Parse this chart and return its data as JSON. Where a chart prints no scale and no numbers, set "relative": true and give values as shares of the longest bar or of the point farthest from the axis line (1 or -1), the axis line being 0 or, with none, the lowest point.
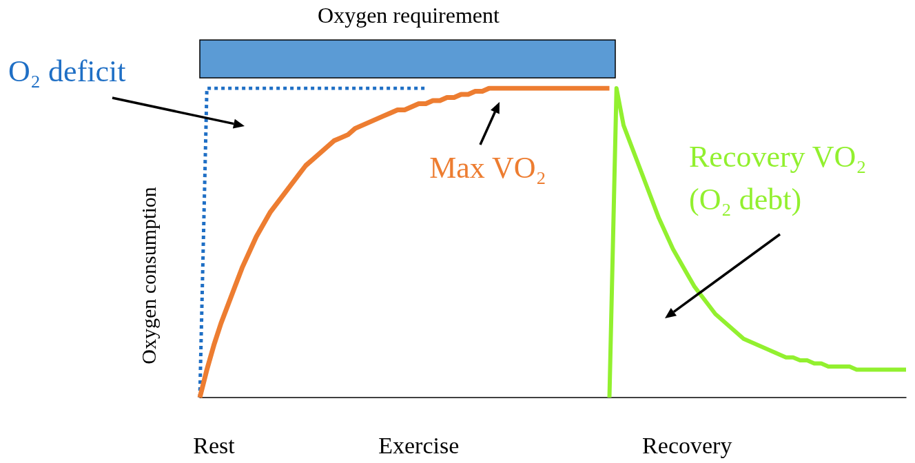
{
  "chart_data": {
    "type": "line",
    "relative": true,
    "ylabel": "Oxygen consumption",
    "marker": "none",
    "categories": [
      null,
      null,
      "Rest",
      null,
      null,
      null,
      null,
      null,
      null,
      null,
      null,
      null,
      null,
      null,
      null,
      null,
      null,
      null,
      null,
      null,
      null,
      null,
      null,
      null,
      null,
      null,
      null,
      null,
      null,
      null,
      null,
      "Exercise",
      null,
      null,
      null,
      null,
      null,
      null,
      null,
      null,
      null,
      null,
      null,
      null,
      null,
      null,
      null,
      null,
      null,
      null,
      null,
      null,
      null,
      null,
      null,
      null,
      null,
      null,
      null,
      null,
      null,
      null,
      null,
      null,
      null,
      null,
      null,
      null,
      null,
      "Recovery",
      null,
      null,
      null,
      null,
      null,
      null,
      null,
      null,
      null,
      null,
      null,
      null,
      null,
      null,
      null,
      null,
      null,
      null,
      null,
      null,
      null,
      null,
      null,
      null,
      null,
      null,
      null,
      null,
      null,
      null,
      null
    ],
    "series": [
      {
        "color": "#1f6fc5",
        "line_style": "dotted",
        "values": [
          0,
          1,
          1,
          1,
          1,
          1,
          1,
          1,
          1,
          1,
          1,
          1,
          1,
          1,
          1,
          1,
          1,
          1,
          1,
          1,
          1,
          1,
          1,
          1,
          1,
          1,
          1,
          1,
          1,
          1,
          1,
          1,
          1,
          null,
          null,
          null,
          null,
          null,
          null,
          null,
          null,
          null,
          null,
          null,
          null,
          null,
          null,
          null,
          null,
          null,
          null,
          null,
          null,
          null,
          null,
          null,
          null,
          null,
          null,
          null,
          null,
          null,
          null,
          null,
          null,
          null,
          null,
          null,
          null,
          null,
          null,
          null,
          null,
          null,
          null,
          null,
          null,
          null,
          null,
          null,
          null,
          null,
          null,
          null,
          null,
          null,
          null,
          null,
          null,
          null,
          null,
          null,
          null,
          null,
          null,
          null,
          null,
          null,
          null,
          null,
          null
        ]
      },
      {
        "color": "#ed7d31",
        "line_style": "solid",
        "values": [
          0,
          0.09,
          0.17,
          0.24,
          0.3,
          0.36,
          0.42,
          0.47,
          0.52,
          0.56,
          0.6,
          0.63,
          0.66,
          0.69,
          0.72,
          0.75,
          0.77,
          0.79,
          0.81,
          0.83,
          0.84,
          0.85,
          0.87,
          0.88,
          0.89,
          0.9,
          0.91,
          0.92,
          0.93,
          0.93,
          0.94,
          0.95,
          0.95,
          0.96,
          0.96,
          0.97,
          0.97,
          0.98,
          0.98,
          0.99,
          0.99,
          1,
          1,
          1,
          1,
          1,
          1,
          1,
          1,
          1,
          1,
          1,
          1,
          1,
          1,
          1,
          1,
          1,
          1,
          null,
          null,
          null,
          null,
          null,
          null,
          null,
          null,
          null,
          null,
          null,
          null,
          null,
          null,
          null,
          null,
          null,
          null,
          null,
          null,
          null,
          null,
          null,
          null,
          null,
          null,
          null,
          null,
          null,
          null,
          null,
          null,
          null,
          null,
          null,
          null,
          null,
          null,
          null,
          null,
          null,
          null
        ]
      },
      {
        "color": "#92f02f",
        "line_style": "solid",
        "values": [
          null,
          null,
          null,
          null,
          null,
          null,
          null,
          null,
          null,
          null,
          null,
          null,
          null,
          null,
          null,
          null,
          null,
          null,
          null,
          null,
          null,
          null,
          null,
          null,
          null,
          null,
          null,
          null,
          null,
          null,
          null,
          null,
          null,
          null,
          null,
          null,
          null,
          null,
          null,
          null,
          null,
          null,
          null,
          null,
          null,
          null,
          null,
          null,
          null,
          null,
          null,
          null,
          null,
          null,
          null,
          null,
          null,
          null,
          0,
          1,
          0.88,
          0.82,
          0.76,
          0.7,
          0.64,
          0.58,
          0.53,
          0.48,
          0.44,
          0.4,
          0.36,
          0.33,
          0.3,
          0.27,
          0.25,
          0.23,
          0.21,
          0.19,
          0.18,
          0.17,
          0.16,
          0.15,
          0.14,
          0.13,
          0.13,
          0.12,
          0.12,
          0.11,
          0.11,
          0.1,
          0.1,
          0.1,
          0.1,
          0.09,
          0.09,
          0.09,
          0.09,
          0.09,
          0.09,
          0.09,
          0.09
        ]
      }
    ],
    "annotations": [
      "Oxygen requirement",
      "O₂ deficit",
      "Max VO₂",
      "Recovery VO₂\n(O₂ debt)"
    ]
  }
}
